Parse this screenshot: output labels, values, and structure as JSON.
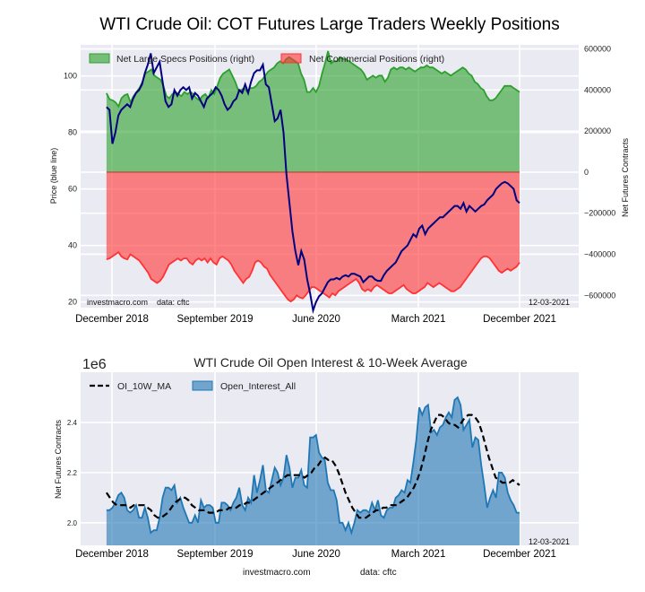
{
  "page": {
    "title": "WTI Crude Oil: COT Futures Large Traders Weekly Positions",
    "footer_site": "investmacro.com",
    "footer_source": "data: cftc"
  },
  "chart_data": [
    {
      "type": "area",
      "title": "WTI Crude Oil: COT Futures Large Traders Weekly Positions",
      "xlabel": "",
      "ylabel_left": "Price (blue line)",
      "ylabel_right": "Net Futures Contracts",
      "x_tick_labels": [
        "December 2018",
        "September 2019",
        "June 2020",
        "March 2021",
        "December 2021"
      ],
      "y_left_ticks": [
        20,
        40,
        60,
        80,
        100
      ],
      "y_left_range": [
        18,
        111
      ],
      "y_right_ticks": [
        "600000",
        "400000",
        "200000",
        "0",
        "−200000",
        "−400000",
        "−600000"
      ],
      "y_right_range": [
        -660000,
        620000
      ],
      "legend": [
        {
          "label": "Net Large Specs Positions (right)",
          "color": "#2ca02c"
        },
        {
          "label": "Net Commercial Positions (right)",
          "color": "#ff3333"
        }
      ],
      "legend_position": "top",
      "grid": true,
      "watermark": "investmacro.com    data: cftc",
      "date_stamp": "12-03-2021",
      "x_range_years": [
        2018.6,
        2022.2
      ],
      "date_start": 2018.88,
      "date_end": 2021.92,
      "series": [
        {
          "name": "Net Large Specs Positions",
          "color": "#2ca02c",
          "values": [
            385000,
            355000,
            350000,
            340000,
            320000,
            360000,
            375000,
            380000,
            340000,
            370000,
            390000,
            410000,
            440000,
            480000,
            490000,
            500000,
            470000,
            460000,
            450000,
            420000,
            370000,
            360000,
            380000,
            390000,
            380000,
            370000,
            390000,
            380000,
            390000,
            380000,
            360000,
            350000,
            370000,
            380000,
            360000,
            400000,
            380000,
            420000,
            460000,
            480000,
            490000,
            500000,
            470000,
            440000,
            400000,
            400000,
            410000,
            390000,
            410000,
            410000,
            420000,
            440000,
            450000,
            470000,
            490000,
            500000,
            510000,
            530000,
            540000,
            530000,
            550000,
            560000,
            550000,
            540000,
            530000,
            480000,
            450000,
            390000,
            390000,
            410000,
            390000,
            420000,
            480000,
            530000,
            590000,
            530000,
            540000,
            540000,
            560000,
            550000,
            550000,
            540000,
            530000,
            520000,
            510000,
            500000,
            480000,
            450000,
            460000,
            470000,
            460000,
            470000,
            470000,
            440000,
            460000,
            500000,
            510000,
            500000,
            510000,
            510000,
            500000,
            510000,
            500000,
            490000,
            500000,
            510000,
            510000,
            520000,
            510000,
            510000,
            500000,
            490000,
            480000,
            490000,
            480000,
            470000,
            480000,
            490000,
            500000,
            510000,
            500000,
            480000,
            470000,
            440000,
            430000,
            410000,
            400000,
            370000,
            350000,
            350000,
            360000,
            380000,
            400000,
            420000,
            420000,
            420000,
            410000,
            400000,
            390000
          ]
        },
        {
          "name": "Net Commercial Positions",
          "color": "#ff3333",
          "values": [
            -425000,
            -420000,
            -410000,
            -400000,
            -390000,
            -410000,
            -420000,
            -425000,
            -400000,
            -410000,
            -420000,
            -430000,
            -450000,
            -470000,
            -490000,
            -520000,
            -530000,
            -540000,
            -530000,
            -510000,
            -480000,
            -450000,
            -440000,
            -430000,
            -420000,
            -430000,
            -420000,
            -420000,
            -440000,
            -450000,
            -430000,
            -420000,
            -430000,
            -420000,
            -440000,
            -420000,
            -440000,
            -450000,
            -420000,
            -410000,
            -420000,
            -430000,
            -450000,
            -480000,
            -500000,
            -520000,
            -540000,
            -520000,
            -510000,
            -480000,
            -440000,
            -430000,
            -440000,
            -460000,
            -470000,
            -500000,
            -520000,
            -540000,
            -560000,
            -580000,
            -600000,
            -620000,
            -630000,
            -620000,
            -600000,
            -610000,
            -615000,
            -600000,
            -580000,
            -560000,
            -560000,
            -570000,
            -580000,
            -590000,
            -600000,
            -610000,
            -590000,
            -600000,
            -580000,
            -570000,
            -560000,
            -550000,
            -540000,
            -530000,
            -520000,
            -540000,
            -570000,
            -580000,
            -570000,
            -580000,
            -560000,
            -550000,
            -560000,
            -570000,
            -580000,
            -590000,
            -590000,
            -580000,
            -570000,
            -560000,
            -550000,
            -570000,
            -580000,
            -590000,
            -590000,
            -580000,
            -570000,
            -560000,
            -540000,
            -550000,
            -560000,
            -550000,
            -540000,
            -550000,
            -560000,
            -570000,
            -580000,
            -580000,
            -570000,
            -560000,
            -540000,
            -520000,
            -500000,
            -480000,
            -460000,
            -440000,
            -420000,
            -410000,
            -410000,
            -420000,
            -440000,
            -460000,
            -480000,
            -490000,
            -480000,
            -470000,
            -480000,
            -470000,
            -460000,
            -440000
          ]
        },
        {
          "name": "Price",
          "color": "#000080",
          "axis": "left",
          "values": [
            89,
            88,
            76,
            80,
            86,
            88,
            89,
            90,
            89,
            92,
            94,
            95,
            97,
            101,
            104,
            108,
            101,
            103,
            105,
            98,
            91,
            89,
            90,
            95,
            93,
            95,
            96,
            95,
            96,
            92,
            94,
            93,
            91,
            89,
            92,
            93,
            94,
            96,
            95,
            93,
            90,
            88,
            89,
            91,
            92,
            95,
            94,
            97,
            94,
            98,
            101,
            102,
            102,
            104,
            97,
            96,
            90,
            84,
            85,
            88,
            80,
            65,
            55,
            45,
            38,
            33,
            38,
            35,
            28,
            23,
            17,
            20,
            22,
            23,
            25,
            27,
            28,
            28,
            28.5,
            28,
            29,
            29.5,
            29,
            30,
            30,
            29.5,
            29,
            27,
            28,
            29,
            29,
            28,
            27.5,
            27.5,
            29.5,
            31,
            32,
            33,
            34,
            36,
            38,
            39,
            40,
            42,
            44,
            43,
            46,
            47,
            44,
            46,
            47,
            48,
            49,
            50,
            50,
            51,
            52,
            53,
            54,
            54,
            53,
            55,
            52,
            54,
            53,
            52,
            53,
            54,
            54.5,
            56,
            57,
            58,
            60,
            61,
            62,
            62.5,
            62,
            61,
            60,
            56,
            55
          ]
        }
      ]
    },
    {
      "type": "area",
      "title": "WTI Crude Oil Open Interest & 10-Week Average",
      "scale_label": "1e6",
      "xlabel": "",
      "ylabel": "Net Futures Contracts",
      "x_tick_labels": [
        "December 2018",
        "September 2019",
        "June 2020",
        "March 2021",
        "December 2021"
      ],
      "y_ticks": [
        2.0,
        2.2,
        2.4
      ],
      "y_range": [
        1.91,
        2.6
      ],
      "legend": [
        {
          "label": "OI_10W_MA",
          "style": "dashed",
          "color": "#000000"
        },
        {
          "label": "Open_Interest_All",
          "color": "#1f77b4"
        }
      ],
      "legend_position": "top-left",
      "grid": true,
      "date_stamp": "12-03-2021",
      "x_range_years": [
        2018.6,
        2022.2
      ],
      "date_start": 2018.88,
      "date_end": 2021.92,
      "series": [
        {
          "name": "Open_Interest_All",
          "color": "#1f77b4",
          "values": [
            2.05,
            2.05,
            2.06,
            2.08,
            2.11,
            2.12,
            2.1,
            2.05,
            2.04,
            2.05,
            2.07,
            2.02,
            2.02,
            2.06,
            2.02,
            1.96,
            1.97,
            1.97,
            2.02,
            2.1,
            2.14,
            2.14,
            2.13,
            2.15,
            2.08,
            2.1,
            2.06,
            2.03,
            2.0,
            2.0,
            2.03,
            2.0,
            2.09,
            2.06,
            2.07,
            2.07,
            2.06,
            2.0,
            2.0,
            2.08,
            2.08,
            2.07,
            2.05,
            2.08,
            2.1,
            2.14,
            2.07,
            2.05,
            2.1,
            2.08,
            2.19,
            2.12,
            2.17,
            2.23,
            2.13,
            2.12,
            2.17,
            2.22,
            2.2,
            2.15,
            2.18,
            2.27,
            2.22,
            2.14,
            2.18,
            2.18,
            2.21,
            2.15,
            2.14,
            2.34,
            2.34,
            2.35,
            2.28,
            2.26,
            2.25,
            2.16,
            2.13,
            2.13,
            2.09,
            2.0,
            2.0,
            1.97,
            2.0,
            1.96,
            2.0,
            2.05,
            2.04,
            2.05,
            2.05,
            2.04,
            2.08,
            2.05,
            2.09,
            2.03,
            2.02,
            2.05,
            2.06,
            2.06,
            2.1,
            2.11,
            2.13,
            2.12,
            2.17,
            2.16,
            2.24,
            2.33,
            2.46,
            2.43,
            2.46,
            2.47,
            2.36,
            2.37,
            2.35,
            2.38,
            2.39,
            2.42,
            2.44,
            2.42,
            2.49,
            2.5,
            2.47,
            2.37,
            2.39,
            2.41,
            2.3,
            2.34,
            2.33,
            2.23,
            2.15,
            2.06,
            2.1,
            2.13,
            2.1,
            2.2,
            2.2,
            2.18,
            2.12,
            2.09,
            2.07,
            2.04,
            2.04
          ]
        },
        {
          "name": "OI_10W_MA",
          "color": "#000000",
          "style": "dashed",
          "values": [
            2.12,
            2.1,
            2.08,
            2.07,
            2.07,
            2.07,
            2.07,
            2.06,
            2.07,
            2.07,
            2.07,
            2.07,
            2.06,
            2.05,
            2.03,
            2.02,
            2.02,
            2.03,
            2.04,
            2.06,
            2.08,
            2.09,
            2.1,
            2.1,
            2.09,
            2.07,
            2.06,
            2.05,
            2.05,
            2.05,
            2.04,
            2.04,
            2.04,
            2.05,
            2.05,
            2.05,
            2.06,
            2.06,
            2.06,
            2.07,
            2.07,
            2.08,
            2.08,
            2.09,
            2.1,
            2.11,
            2.12,
            2.13,
            2.14,
            2.15,
            2.16,
            2.17,
            2.18,
            2.19,
            2.19,
            2.19,
            2.19,
            2.19,
            2.18,
            2.19,
            2.2,
            2.22,
            2.23,
            2.25,
            2.26,
            2.25,
            2.25,
            2.23,
            2.2,
            2.16,
            2.12,
            2.09,
            2.06,
            2.04,
            2.02,
            2.02,
            2.02,
            2.03,
            2.04,
            2.05,
            2.05,
            2.06,
            2.06,
            2.07,
            2.07,
            2.07,
            2.08,
            2.09,
            2.1,
            2.12,
            2.14,
            2.17,
            2.21,
            2.26,
            2.32,
            2.37,
            2.4,
            2.43,
            2.43,
            2.42,
            2.4,
            2.39,
            2.39,
            2.38,
            2.4,
            2.42,
            2.43,
            2.43,
            2.42,
            2.4,
            2.36,
            2.31,
            2.26,
            2.22,
            2.18,
            2.17,
            2.16,
            2.16,
            2.16,
            2.17,
            2.16,
            2.15
          ]
        }
      ]
    }
  ]
}
